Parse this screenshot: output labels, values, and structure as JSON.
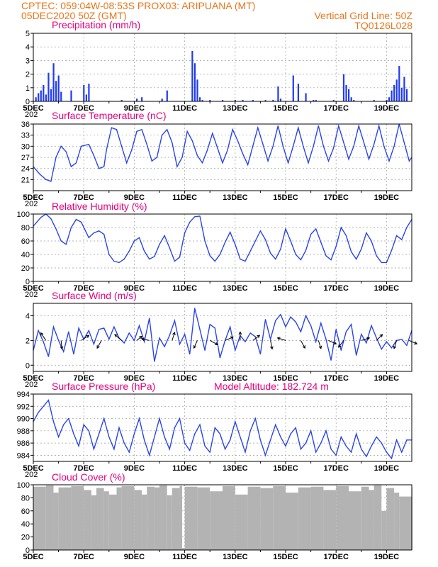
{
  "header": {
    "line1_left": "CPTEC:   059:04W-08:53S   PROX03: ARIPUANA (MT)",
    "line2_left": "05DEC2020 50Z (GMT)",
    "line2_right": "Vertical Grid Line: 50Z",
    "line3_right": "TQ0126L028",
    "model_altitude": "Model Altitude: 182.724  m"
  },
  "x_axis": {
    "labels": [
      "5DEC",
      "7DEC",
      "9DEC",
      "11DEC",
      "13DEC",
      "15DEC",
      "17DEC",
      "19DEC"
    ],
    "label_days": [
      0,
      2,
      4,
      6,
      8,
      10,
      12,
      14
    ],
    "range_days": [
      0,
      15
    ],
    "stray_label": "202"
  },
  "colors": {
    "line": "#2a45e8",
    "bar": "#1f3af0",
    "cloud": "#b3b3b3",
    "title": "#e6007e",
    "header": "#e8761a"
  },
  "chart_data": [
    {
      "id": "precip",
      "type": "bar",
      "title": "Precipitation (mm/h)",
      "ylim": [
        0,
        5
      ],
      "yticks": [
        0,
        1,
        2,
        3,
        4,
        5
      ],
      "x": [
        0.1,
        0.2,
        0.3,
        0.4,
        0.5,
        0.6,
        0.7,
        0.8,
        0.9,
        1.0,
        1.1,
        1.5,
        2.0,
        2.1,
        2.2,
        3.5,
        4.1,
        4.3,
        5.1,
        5.3,
        6.3,
        6.4,
        6.5,
        6.6,
        6.7,
        7.0,
        7.5,
        8.0,
        8.3,
        8.7,
        9.2,
        9.5,
        9.7,
        9.8,
        10.3,
        10.5,
        10.8,
        11.1,
        11.2,
        11.9,
        12.3,
        12.4,
        12.5,
        12.6,
        12.7,
        13.5,
        14.0,
        14.1,
        14.2,
        14.3,
        14.4,
        14.5,
        14.6,
        14.7,
        14.8
      ],
      "values": [
        0.3,
        0.6,
        0.8,
        1.2,
        0.5,
        2.1,
        0.9,
        2.8,
        1.5,
        1.9,
        0.7,
        0.8,
        1.2,
        0.5,
        1.3,
        0.1,
        0.2,
        0.3,
        0.2,
        0.8,
        3.7,
        2.8,
        1.6,
        0.3,
        0.1,
        0.1,
        0.1,
        0.1,
        0.1,
        0.1,
        0.1,
        0.1,
        1.1,
        0.2,
        1.9,
        1.3,
        0.6,
        0.1,
        0.1,
        0.1,
        2.0,
        1.2,
        0.9,
        0.3,
        0.1,
        0.1,
        0.1,
        0.3,
        0.8,
        1.2,
        1.6,
        2.6,
        1.0,
        1.8,
        0.9
      ]
    },
    {
      "id": "temperature",
      "type": "line",
      "title": "Surface Temperature (nC)",
      "ylim": [
        18,
        36
      ],
      "yticks": [
        21,
        24,
        27,
        30,
        33,
        36
      ],
      "x": [
        0,
        0.25,
        0.5,
        0.7,
        0.9,
        1.1,
        1.3,
        1.5,
        1.7,
        1.9,
        2.2,
        2.4,
        2.6,
        2.8,
        2.9,
        3.1,
        3.3,
        3.5,
        3.7,
        3.9,
        4.1,
        4.3,
        4.5,
        4.7,
        4.9,
        5.1,
        5.3,
        5.5,
        5.7,
        5.9,
        6.1,
        6.3,
        6.5,
        6.7,
        6.9,
        7.1,
        7.3,
        7.5,
        7.7,
        7.9,
        8.1,
        8.3,
        8.5,
        8.7,
        8.9,
        9.1,
        9.3,
        9.5,
        9.7,
        9.9,
        10.1,
        10.3,
        10.5,
        10.7,
        10.9,
        11.1,
        11.3,
        11.5,
        11.7,
        11.9,
        12.1,
        12.3,
        12.5,
        12.7,
        12.9,
        13.1,
        13.3,
        13.5,
        13.7,
        13.9,
        14.1,
        14.3,
        14.5,
        14.7,
        14.9,
        15
      ],
      "values": [
        24.5,
        22.5,
        21,
        20.5,
        27,
        30,
        28.5,
        24.5,
        25.5,
        30,
        30.5,
        27.5,
        24,
        24.5,
        29,
        35,
        34.5,
        30,
        25.5,
        29,
        34,
        34.5,
        30.5,
        26,
        27,
        33,
        34.5,
        31,
        24.5,
        27,
        34,
        31.5,
        27.5,
        25.5,
        29,
        33.5,
        29.5,
        25.5,
        29,
        34.5,
        31.5,
        28,
        25,
        30,
        35,
        30.5,
        26,
        30,
        35.5,
        30,
        25.5,
        30,
        35,
        30,
        25.5,
        30,
        35.5,
        30,
        26,
        29.5,
        35.5,
        31,
        26.5,
        30,
        35.5,
        31,
        26.5,
        30.5,
        35.5,
        30,
        26,
        30,
        36,
        31,
        26,
        27
      ]
    },
    {
      "id": "humidity",
      "type": "line",
      "title": "Relative Humidity (%)",
      "ylim": [
        0,
        100
      ],
      "yticks": [
        0,
        20,
        40,
        60,
        80,
        100
      ],
      "x": [
        0,
        0.3,
        0.5,
        0.7,
        0.9,
        1.1,
        1.3,
        1.5,
        1.7,
        1.9,
        2.2,
        2.4,
        2.6,
        2.8,
        3.0,
        3.2,
        3.4,
        3.6,
        3.8,
        4.0,
        4.2,
        4.4,
        4.6,
        4.8,
        5.0,
        5.2,
        5.4,
        5.6,
        5.8,
        6.0,
        6.2,
        6.4,
        6.6,
        6.8,
        7.0,
        7.2,
        7.4,
        7.6,
        7.8,
        8.0,
        8.2,
        8.4,
        8.6,
        8.8,
        9.0,
        9.2,
        9.4,
        9.6,
        9.8,
        10.0,
        10.2,
        10.4,
        10.6,
        10.8,
        11.0,
        11.2,
        11.4,
        11.6,
        11.8,
        12.0,
        12.2,
        12.4,
        12.6,
        12.8,
        13.0,
        13.2,
        13.4,
        13.6,
        13.8,
        14.0,
        14.2,
        14.4,
        14.6,
        14.8,
        15
      ],
      "values": [
        82,
        95,
        100,
        93,
        78,
        60,
        55,
        80,
        92,
        88,
        65,
        72,
        75,
        70,
        40,
        30,
        28,
        33,
        45,
        60,
        65,
        45,
        33,
        37,
        55,
        68,
        50,
        30,
        36,
        72,
        88,
        96,
        97,
        60,
        38,
        30,
        40,
        58,
        73,
        55,
        33,
        30,
        45,
        60,
        75,
        62,
        42,
        33,
        48,
        78,
        60,
        40,
        32,
        46,
        70,
        78,
        58,
        38,
        32,
        52,
        80,
        68,
        44,
        33,
        48,
        72,
        60,
        38,
        28,
        28,
        46,
        68,
        62,
        80,
        92
      ]
    },
    {
      "id": "wind",
      "type": "line",
      "title": "Surface Wind (m/s)",
      "ylim": [
        -0.5,
        5
      ],
      "yticks": [
        0,
        2,
        4
      ],
      "x": [
        0,
        0.2,
        0.4,
        0.6,
        0.8,
        1.0,
        1.2,
        1.4,
        1.6,
        1.8,
        2.0,
        2.2,
        2.4,
        2.6,
        2.8,
        3.0,
        3.2,
        3.4,
        3.6,
        3.8,
        4.0,
        4.2,
        4.4,
        4.6,
        4.8,
        5.0,
        5.2,
        5.4,
        5.6,
        5.8,
        6.0,
        6.2,
        6.4,
        6.6,
        6.8,
        7.0,
        7.2,
        7.4,
        7.6,
        7.8,
        8.0,
        8.2,
        8.4,
        8.6,
        8.8,
        9.0,
        9.2,
        9.4,
        9.6,
        9.8,
        10.0,
        10.2,
        10.4,
        10.6,
        10.8,
        11.0,
        11.2,
        11.4,
        11.6,
        11.8,
        12.0,
        12.2,
        12.4,
        12.6,
        12.8,
        13.0,
        13.2,
        13.4,
        13.6,
        13.8,
        14.0,
        14.2,
        14.4,
        14.6,
        14.8,
        15
      ],
      "values": [
        1.2,
        2.8,
        1.9,
        0.7,
        3.1,
        2.0,
        1.1,
        2.7,
        0.9,
        3.0,
        2.1,
        2.8,
        1.7,
        2.9,
        3.0,
        2.1,
        3.1,
        2.2,
        1.8,
        2.6,
        2.0,
        3.2,
        1.9,
        3.8,
        0.3,
        2.2,
        1.5,
        2.4,
        3.6,
        1.7,
        2.5,
        0.9,
        4.6,
        2.9,
        1.2,
        3.3,
        3.0,
        0.6,
        2.0,
        3.1,
        1.2,
        2.4,
        1.9,
        2.6,
        2.3,
        0.9,
        3.7,
        2.1,
        3.6,
        4.1,
        3.1,
        3.9,
        3.5,
        2.7,
        4.0,
        3.2,
        1.9,
        3.4,
        2.1,
        0.4,
        2.9,
        1.2,
        2.7,
        3.3,
        0.8,
        2.5,
        1.8,
        3.2,
        2.2,
        1.3,
        1.9,
        1.4,
        2.0,
        2.1,
        1.6,
        2.8
      ],
      "arrows": [
        {
          "x": 0.5,
          "dx": -0.6,
          "dy": 0.9
        },
        {
          "x": 1.1,
          "dx": 0.1,
          "dy": -1.0
        },
        {
          "x": 1.9,
          "dx": 0.9,
          "dy": 0.6
        },
        {
          "x": 2.7,
          "dx": -0.5,
          "dy": -0.9
        },
        {
          "x": 3.5,
          "dx": -0.8,
          "dy": 0.7
        },
        {
          "x": 4.1,
          "dx": 0.6,
          "dy": 0.5
        },
        {
          "x": 4.6,
          "dx": -0.9,
          "dy": 0.2
        },
        {
          "x": 5.5,
          "dx": 0.3,
          "dy": 0.95
        },
        {
          "x": 6.5,
          "dx": -0.4,
          "dy": -0.9
        },
        {
          "x": 7.0,
          "dx": 0.9,
          "dy": -0.5
        },
        {
          "x": 7.6,
          "dx": 0.95,
          "dy": 0.4
        },
        {
          "x": 8.2,
          "dx": 0.0,
          "dy": 1.0
        },
        {
          "x": 8.7,
          "dx": 0.8,
          "dy": 0.6
        },
        {
          "x": 9.4,
          "dx": 0.2,
          "dy": -1.0
        },
        {
          "x": 10.0,
          "dx": -0.95,
          "dy": 0.3
        },
        {
          "x": 10.6,
          "dx": 0.5,
          "dy": -0.9
        },
        {
          "x": 11.3,
          "dx": 0.3,
          "dy": -0.95
        },
        {
          "x": 11.7,
          "dx": 0.9,
          "dy": -0.4
        },
        {
          "x": 12.3,
          "dx": -0.6,
          "dy": -0.8
        },
        {
          "x": 13.0,
          "dx": 0.95,
          "dy": 0.3
        },
        {
          "x": 13.6,
          "dx": 0.7,
          "dy": 0.7
        },
        {
          "x": 14.4,
          "dx": -0.3,
          "dy": -0.95
        },
        {
          "x": 14.9,
          "dx": 0.9,
          "dy": -0.4
        }
      ]
    },
    {
      "id": "pressure",
      "type": "line",
      "title": "Surface Pressure (hPa)",
      "ylim": [
        983,
        994
      ],
      "yticks": [
        984,
        986,
        988,
        990,
        992,
        994
      ],
      "x": [
        0,
        0.2,
        0.4,
        0.6,
        0.8,
        1.0,
        1.2,
        1.4,
        1.6,
        1.8,
        2.0,
        2.2,
        2.4,
        2.6,
        2.8,
        3.0,
        3.2,
        3.4,
        3.6,
        3.8,
        4.0,
        4.2,
        4.4,
        4.6,
        4.8,
        5.0,
        5.2,
        5.4,
        5.6,
        5.8,
        6.0,
        6.2,
        6.4,
        6.6,
        6.8,
        7.0,
        7.2,
        7.4,
        7.6,
        7.8,
        8.0,
        8.2,
        8.4,
        8.6,
        8.8,
        9.0,
        9.2,
        9.4,
        9.6,
        9.8,
        10.0,
        10.2,
        10.4,
        10.6,
        10.8,
        11.0,
        11.2,
        11.4,
        11.6,
        11.8,
        12.0,
        12.2,
        12.4,
        12.6,
        12.8,
        13.0,
        13.2,
        13.4,
        13.6,
        13.8,
        14.0,
        14.2,
        14.4,
        14.6,
        14.8,
        15
      ],
      "values": [
        989.5,
        991,
        992,
        993,
        989.5,
        987,
        989,
        990,
        987.5,
        985.5,
        989,
        988,
        985,
        987.5,
        990,
        987,
        985,
        988.5,
        986,
        984.5,
        987.5,
        990,
        986.5,
        984,
        987,
        990,
        987,
        985,
        988.5,
        990,
        986,
        984.8,
        987.5,
        989,
        985.5,
        984.5,
        988.5,
        987.5,
        985,
        986.5,
        989.5,
        987,
        984.5,
        988,
        990,
        986.5,
        984,
        986.5,
        989,
        987,
        985.5,
        987.5,
        988.5,
        985,
        986,
        988,
        984.5,
        986,
        988,
        985,
        984,
        987,
        985.5,
        984.5,
        987.5,
        985,
        983.8,
        985.5,
        987,
        986,
        984.5,
        983.5,
        986.5,
        984.5,
        986.5,
        986.5
      ]
    },
    {
      "id": "cloud",
      "type": "area",
      "title": "Cloud Cover (%)",
      "ylim": [
        0,
        100
      ],
      "yticks": [
        0,
        20,
        40,
        60,
        80,
        100
      ],
      "x": [
        0,
        0.5,
        0.8,
        1.0,
        1.5,
        2.0,
        2.3,
        2.5,
        2.8,
        3.0,
        3.3,
        3.5,
        4.0,
        4.3,
        4.5,
        4.8,
        5.0,
        5.3,
        5.5,
        5.8,
        5.9,
        6.0,
        6.5,
        7.0,
        7.5,
        8.0,
        8.5,
        9.0,
        9.5,
        10.0,
        10.5,
        11.0,
        11.5,
        12.0,
        12.5,
        13.0,
        13.3,
        13.5,
        13.8,
        14.0,
        14.3,
        14.5,
        15
      ],
      "values": [
        97,
        99,
        88,
        96,
        98,
        92,
        84,
        95,
        90,
        85,
        96,
        98,
        92,
        85,
        97,
        96,
        99,
        84,
        95,
        98,
        3,
        97,
        96,
        90,
        98,
        85,
        97,
        95,
        98,
        88,
        96,
        97,
        92,
        98,
        90,
        97,
        92,
        99,
        60,
        95,
        88,
        82,
        96
      ]
    }
  ]
}
